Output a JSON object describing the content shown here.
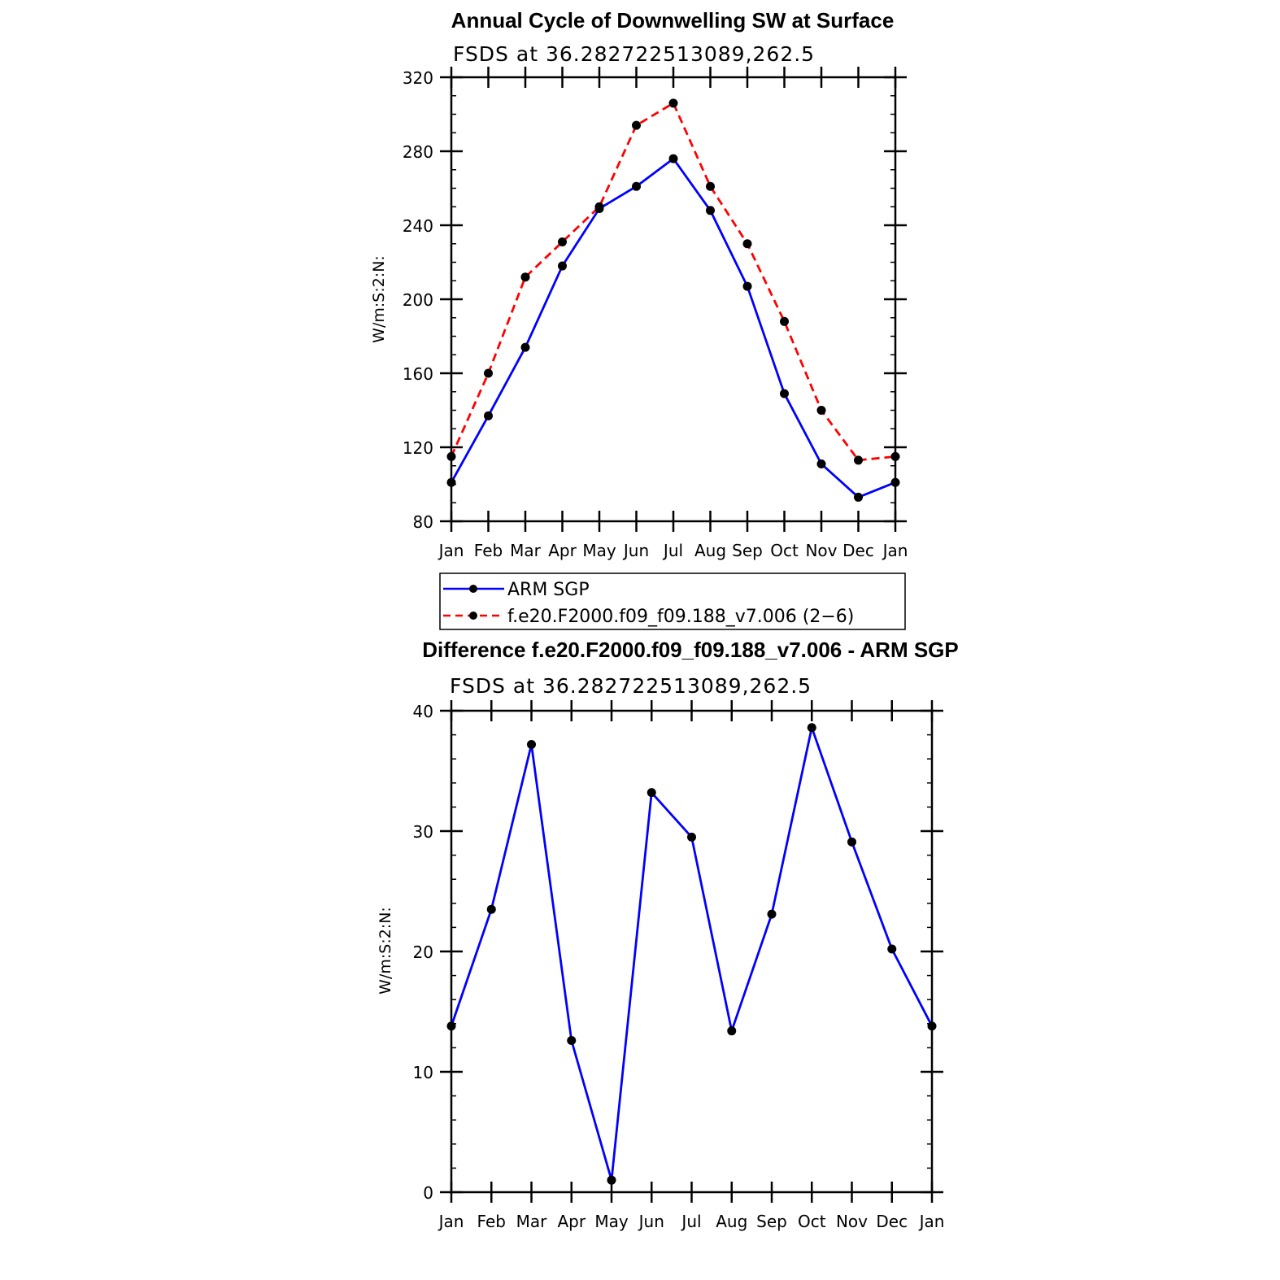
{
  "chart_data": [
    {
      "type": "line",
      "title": "Annual Cycle of Downwelling SW at Surface",
      "subtitle": "FSDS at 36.282722513089,262.5",
      "ylabel": "W/m:S:2:N:",
      "xlabel": "",
      "categories": [
        "Jan",
        "Feb",
        "Mar",
        "Apr",
        "May",
        "Jun",
        "Jul",
        "Aug",
        "Sep",
        "Oct",
        "Nov",
        "Dec",
        "Jan"
      ],
      "ylim": [
        80,
        320
      ],
      "yticks": [
        80,
        120,
        160,
        200,
        240,
        280,
        320
      ],
      "legend_position": "below",
      "series": [
        {
          "name": "ARM SGP",
          "color": "#0000ff",
          "dash": "solid",
          "values": [
            101,
            137,
            174,
            218,
            249,
            261,
            276,
            248,
            207,
            149,
            111,
            93,
            101
          ]
        },
        {
          "name": "f.e20.F2000.f09_f09.188_v7.006 (2−6)",
          "color": "#ff0000",
          "dash": "dashed",
          "values": [
            115,
            160,
            212,
            231,
            250,
            294,
            306,
            261,
            230,
            188,
            140,
            113,
            115
          ]
        }
      ]
    },
    {
      "type": "line",
      "title": "Difference f.e20.F2000.f09_f09.188_v7.006 - ARM SGP",
      "subtitle": "FSDS at 36.282722513089,262.5",
      "ylabel": "W/m:S:2:N:",
      "xlabel": "",
      "categories": [
        "Jan",
        "Feb",
        "Mar",
        "Apr",
        "May",
        "Jun",
        "Jul",
        "Aug",
        "Sep",
        "Oct",
        "Nov",
        "Dec",
        "Jan"
      ],
      "ylim": [
        0,
        40
      ],
      "yticks": [
        0,
        10,
        20,
        30,
        40
      ],
      "series": [
        {
          "color": "#0000ff",
          "dash": "solid",
          "values": [
            13.8,
            23.5,
            37.2,
            12.6,
            1.0,
            33.2,
            29.5,
            13.4,
            23.1,
            38.6,
            29.1,
            20.2,
            13.8
          ]
        }
      ]
    }
  ]
}
